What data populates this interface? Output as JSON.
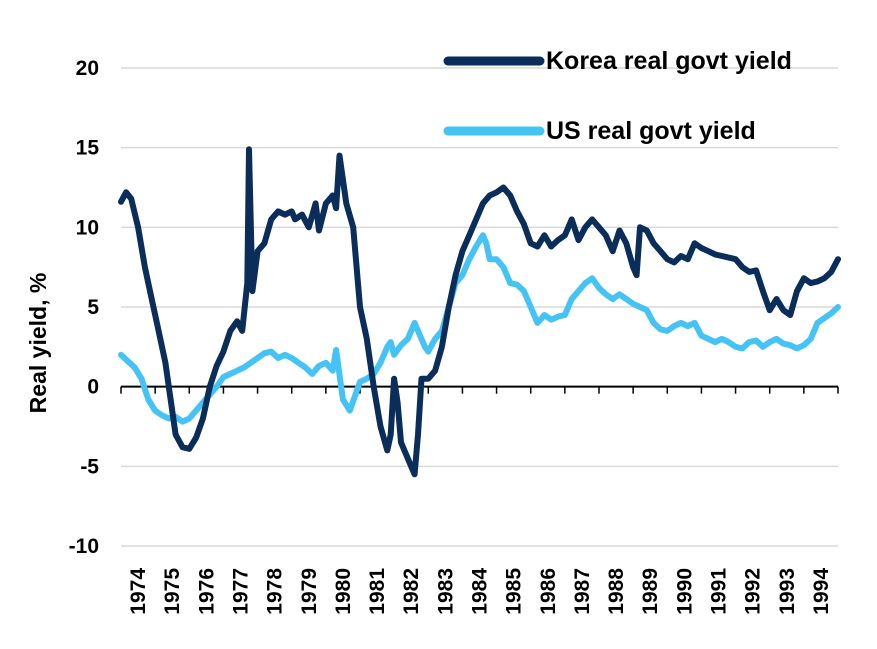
{
  "chart_data": {
    "type": "line",
    "ylabel": "Real yield, %",
    "xlabel": "",
    "ylim": [
      -10,
      20
    ],
    "yticks": [
      -10,
      -5,
      0,
      5,
      10,
      15,
      20
    ],
    "xlim": [
      1974,
      1995
    ],
    "xticks": [
      "1974",
      "1975",
      "1976",
      "1977",
      "1978",
      "1979",
      "1980",
      "1981",
      "1982",
      "1983",
      "1984",
      "1985",
      "1986",
      "1987",
      "1988",
      "1989",
      "1990",
      "1991",
      "1992",
      "1993",
      "1994"
    ],
    "grid": "horizontal",
    "legend_position": "top-right",
    "series": [
      {
        "name": "Korea real govt yield",
        "color": "#0b2d5a",
        "points": [
          [
            1974.0,
            11.6
          ],
          [
            1974.15,
            12.2
          ],
          [
            1974.3,
            11.8
          ],
          [
            1974.5,
            10
          ],
          [
            1974.7,
            7.5
          ],
          [
            1974.9,
            5.5
          ],
          [
            1975.1,
            3.5
          ],
          [
            1975.3,
            1.5
          ],
          [
            1975.5,
            -1.5
          ],
          [
            1975.6,
            -3
          ],
          [
            1975.8,
            -3.8
          ],
          [
            1976.0,
            -3.9
          ],
          [
            1976.2,
            -3.2
          ],
          [
            1976.4,
            -2
          ],
          [
            1976.6,
            0
          ],
          [
            1976.8,
            1.3
          ],
          [
            1977.0,
            2.2
          ],
          [
            1977.2,
            3.5
          ],
          [
            1977.4,
            4.1
          ],
          [
            1977.55,
            3.5
          ],
          [
            1977.7,
            6.5
          ],
          [
            1977.75,
            14.9
          ],
          [
            1977.85,
            6
          ],
          [
            1978.0,
            8.5
          ],
          [
            1978.2,
            9
          ],
          [
            1978.4,
            10.5
          ],
          [
            1978.6,
            11
          ],
          [
            1978.8,
            10.8
          ],
          [
            1979.0,
            11
          ],
          [
            1979.1,
            10.5
          ],
          [
            1979.3,
            10.8
          ],
          [
            1979.5,
            10
          ],
          [
            1979.7,
            11.5
          ],
          [
            1979.8,
            9.8
          ],
          [
            1980.0,
            11.5
          ],
          [
            1980.2,
            12
          ],
          [
            1980.3,
            11.2
          ],
          [
            1980.4,
            14.5
          ],
          [
            1980.6,
            11.5
          ],
          [
            1980.8,
            10
          ],
          [
            1981.0,
            5
          ],
          [
            1981.2,
            3
          ],
          [
            1981.4,
            0
          ],
          [
            1981.6,
            -2.5
          ],
          [
            1981.8,
            -4
          ],
          [
            1981.9,
            -3
          ],
          [
            1982.0,
            0.5
          ],
          [
            1982.1,
            -1
          ],
          [
            1982.2,
            -3.5
          ],
          [
            1982.4,
            -4.5
          ],
          [
            1982.6,
            -5.5
          ],
          [
            1982.7,
            -3
          ],
          [
            1982.8,
            0.5
          ],
          [
            1983.0,
            0.5
          ],
          [
            1983.2,
            1
          ],
          [
            1983.4,
            2.5
          ],
          [
            1983.6,
            5
          ],
          [
            1983.8,
            7
          ],
          [
            1984.0,
            8.5
          ],
          [
            1984.2,
            9.5
          ],
          [
            1984.4,
            10.5
          ],
          [
            1984.6,
            11.5
          ],
          [
            1984.8,
            12
          ],
          [
            1985.0,
            12.2
          ],
          [
            1985.2,
            12.5
          ],
          [
            1985.4,
            12
          ],
          [
            1985.6,
            11
          ],
          [
            1985.8,
            10.2
          ],
          [
            1986.0,
            9
          ],
          [
            1986.2,
            8.8
          ],
          [
            1986.4,
            9.5
          ],
          [
            1986.6,
            8.8
          ],
          [
            1986.8,
            9.2
          ],
          [
            1987.0,
            9.5
          ],
          [
            1987.2,
            10.5
          ],
          [
            1987.4,
            9.2
          ],
          [
            1987.6,
            10
          ],
          [
            1987.8,
            10.5
          ],
          [
            1988.0,
            10
          ],
          [
            1988.2,
            9.5
          ],
          [
            1988.4,
            8.5
          ],
          [
            1988.6,
            9.8
          ],
          [
            1988.8,
            9
          ],
          [
            1989.0,
            7.5
          ],
          [
            1989.1,
            7
          ],
          [
            1989.2,
            10
          ],
          [
            1989.4,
            9.8
          ],
          [
            1989.6,
            9
          ],
          [
            1989.8,
            8.5
          ],
          [
            1990.0,
            8
          ],
          [
            1990.2,
            7.8
          ],
          [
            1990.4,
            8.2
          ],
          [
            1990.6,
            8
          ],
          [
            1990.8,
            9
          ],
          [
            1991.0,
            8.7
          ],
          [
            1991.2,
            8.5
          ],
          [
            1991.4,
            8.3
          ],
          [
            1991.6,
            8.2
          ],
          [
            1991.8,
            8.1
          ],
          [
            1992.0,
            8
          ],
          [
            1992.2,
            7.5
          ],
          [
            1992.4,
            7.2
          ],
          [
            1992.6,
            7.3
          ],
          [
            1992.8,
            6
          ],
          [
            1993.0,
            4.8
          ],
          [
            1993.2,
            5.5
          ],
          [
            1993.4,
            4.8
          ],
          [
            1993.6,
            4.5
          ],
          [
            1993.8,
            6
          ],
          [
            1994.0,
            6.8
          ],
          [
            1994.2,
            6.5
          ],
          [
            1994.4,
            6.6
          ],
          [
            1994.6,
            6.8
          ],
          [
            1994.8,
            7.2
          ],
          [
            1995.0,
            8
          ]
        ]
      },
      {
        "name": "US real govt yield",
        "color": "#45c3f5",
        "points": [
          [
            1974.0,
            2
          ],
          [
            1974.2,
            1.6
          ],
          [
            1974.4,
            1.2
          ],
          [
            1974.6,
            0.5
          ],
          [
            1974.8,
            -0.8
          ],
          [
            1975.0,
            -1.5
          ],
          [
            1975.2,
            -1.8
          ],
          [
            1975.4,
            -2
          ],
          [
            1975.6,
            -1.9
          ],
          [
            1975.8,
            -2.2
          ],
          [
            1976.0,
            -2
          ],
          [
            1976.2,
            -1.5
          ],
          [
            1976.4,
            -1
          ],
          [
            1976.6,
            -0.5
          ],
          [
            1976.8,
            0
          ],
          [
            1977.0,
            0.6
          ],
          [
            1977.2,
            0.8
          ],
          [
            1977.4,
            1
          ],
          [
            1977.6,
            1.2
          ],
          [
            1977.8,
            1.5
          ],
          [
            1978.0,
            1.8
          ],
          [
            1978.2,
            2.1
          ],
          [
            1978.4,
            2.2
          ],
          [
            1978.6,
            1.8
          ],
          [
            1978.8,
            2
          ],
          [
            1979.0,
            1.8
          ],
          [
            1979.2,
            1.5
          ],
          [
            1979.4,
            1.2
          ],
          [
            1979.6,
            0.8
          ],
          [
            1979.8,
            1.3
          ],
          [
            1980.0,
            1.5
          ],
          [
            1980.2,
            1
          ],
          [
            1980.3,
            2.3
          ],
          [
            1980.5,
            -0.8
          ],
          [
            1980.7,
            -1.5
          ],
          [
            1980.9,
            -0.3
          ],
          [
            1981.0,
            0.3
          ],
          [
            1981.2,
            0.5
          ],
          [
            1981.4,
            0.8
          ],
          [
            1981.6,
            1.5
          ],
          [
            1981.8,
            2.5
          ],
          [
            1981.9,
            2.8
          ],
          [
            1982.0,
            2
          ],
          [
            1982.2,
            2.6
          ],
          [
            1982.4,
            3
          ],
          [
            1982.5,
            3.5
          ],
          [
            1982.6,
            4
          ],
          [
            1982.8,
            3
          ],
          [
            1982.9,
            2.5
          ],
          [
            1983.0,
            2.2
          ],
          [
            1983.2,
            3
          ],
          [
            1983.4,
            3.5
          ],
          [
            1983.6,
            5
          ],
          [
            1983.8,
            6.5
          ],
          [
            1984.0,
            7
          ],
          [
            1984.2,
            8
          ],
          [
            1984.4,
            8.8
          ],
          [
            1984.6,
            9.5
          ],
          [
            1984.7,
            9
          ],
          [
            1984.8,
            8
          ],
          [
            1985.0,
            8
          ],
          [
            1985.2,
            7.5
          ],
          [
            1985.4,
            6.5
          ],
          [
            1985.6,
            6.4
          ],
          [
            1985.8,
            6
          ],
          [
            1986.0,
            5
          ],
          [
            1986.2,
            4
          ],
          [
            1986.4,
            4.5
          ],
          [
            1986.6,
            4.2
          ],
          [
            1986.8,
            4.4
          ],
          [
            1987.0,
            4.5
          ],
          [
            1987.2,
            5.5
          ],
          [
            1987.4,
            6
          ],
          [
            1987.6,
            6.5
          ],
          [
            1987.8,
            6.8
          ],
          [
            1988.0,
            6.2
          ],
          [
            1988.2,
            5.8
          ],
          [
            1988.4,
            5.5
          ],
          [
            1988.6,
            5.8
          ],
          [
            1988.8,
            5.5
          ],
          [
            1989.0,
            5.2
          ],
          [
            1989.2,
            5
          ],
          [
            1989.4,
            4.8
          ],
          [
            1989.6,
            4
          ],
          [
            1989.8,
            3.6
          ],
          [
            1990.0,
            3.5
          ],
          [
            1990.2,
            3.8
          ],
          [
            1990.4,
            4
          ],
          [
            1990.6,
            3.8
          ],
          [
            1990.8,
            4
          ],
          [
            1991.0,
            3.2
          ],
          [
            1991.2,
            3
          ],
          [
            1991.4,
            2.8
          ],
          [
            1991.6,
            3
          ],
          [
            1991.8,
            2.8
          ],
          [
            1992.0,
            2.5
          ],
          [
            1992.2,
            2.4
          ],
          [
            1992.4,
            2.8
          ],
          [
            1992.6,
            2.9
          ],
          [
            1992.8,
            2.5
          ],
          [
            1993.0,
            2.8
          ],
          [
            1993.2,
            3
          ],
          [
            1993.4,
            2.7
          ],
          [
            1993.6,
            2.6
          ],
          [
            1993.8,
            2.4
          ],
          [
            1994.0,
            2.6
          ],
          [
            1994.2,
            3
          ],
          [
            1994.4,
            4
          ],
          [
            1994.6,
            4.3
          ],
          [
            1994.8,
            4.6
          ],
          [
            1995.0,
            5
          ]
        ]
      }
    ]
  }
}
